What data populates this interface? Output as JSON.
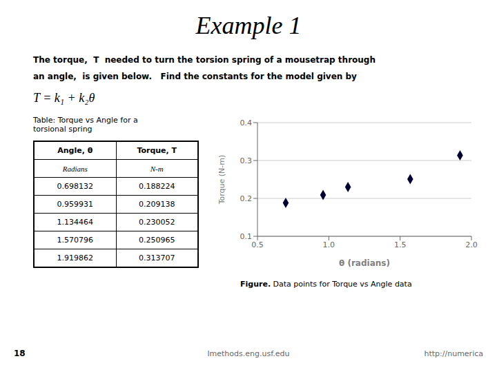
{
  "chart_data": {
    "type": "scatter",
    "title": "Example 1",
    "annotations": [
      "The torque,  T  needed to turn the torsion spring of a mousetrap through",
      "an angle,  is given below.   Find the constants for the model given by",
      "T = k₁ + k₂θ",
      "Figure.",
      " Data points for Torque vs Angle data",
      "18",
      "lmethods.eng.usf.edu",
      "http://numerica"
    ],
    "table": {
      "title": "Table: Torque vs Angle for a\ntorsional spring",
      "headers": [
        "Angle, θ",
        "Torque, T"
      ],
      "units": [
        "Radians",
        "N-m"
      ]
    },
    "x_label": "θ (radians)",
    "y_label": "Torque (N-m)",
    "x": [
      0.698132,
      0.959931,
      1.134464,
      1.570796,
      1.919862
    ],
    "values": [
      0.188224,
      0.209138,
      0.230052,
      0.250965,
      0.313707
    ],
    "color": "#000033",
    "marker": "diamond",
    "xlim": [
      0.5,
      2.0
    ],
    "ylim": [
      0.1,
      0.4
    ],
    "xticks": [
      0.5,
      {
        "value": 1.0,
        "label": "1.0"
      },
      1.5,
      {
        "value": 2.0,
        "label": "2.0"
      }
    ],
    "yticks": [
      0.1,
      0.2,
      0.3,
      0.4
    ],
    "grid": true
  }
}
